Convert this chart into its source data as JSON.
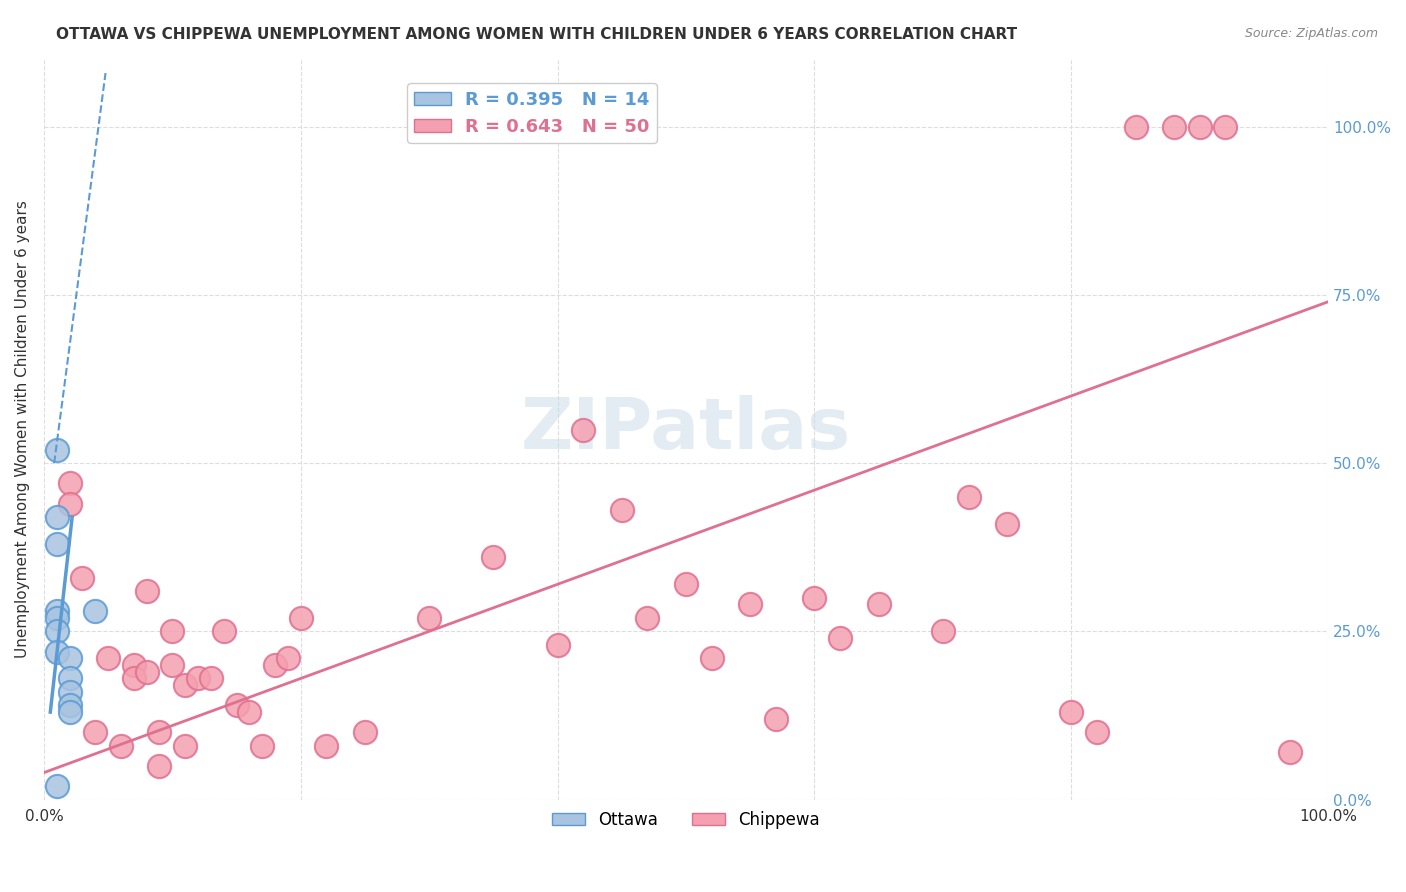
{
  "title": "OTTAWA VS CHIPPEWA UNEMPLOYMENT AMONG WOMEN WITH CHILDREN UNDER 6 YEARS CORRELATION CHART",
  "source": "Source: ZipAtlas.com",
  "ylabel": "Unemployment Among Women with Children Under 6 years",
  "legend_ottawa_R": "0.395",
  "legend_ottawa_N": "14",
  "legend_chippewa_R": "0.643",
  "legend_chippewa_N": "50",
  "color_ottawa": "#a8c4e0",
  "color_chippewa": "#f4a0b0",
  "color_ottawa_line": "#5b9bd5",
  "color_chippewa_line": "#e07090",
  "ottawa_scatter_x": [
    0.01,
    0.01,
    0.01,
    0.01,
    0.01,
    0.01,
    0.01,
    0.02,
    0.02,
    0.02,
    0.02,
    0.02,
    0.04,
    0.01
  ],
  "ottawa_scatter_y": [
    0.52,
    0.42,
    0.38,
    0.28,
    0.27,
    0.25,
    0.22,
    0.21,
    0.18,
    0.16,
    0.14,
    0.13,
    0.28,
    0.02
  ],
  "chippewa_scatter_x": [
    0.02,
    0.02,
    0.03,
    0.04,
    0.05,
    0.06,
    0.07,
    0.07,
    0.08,
    0.08,
    0.09,
    0.09,
    0.1,
    0.1,
    0.11,
    0.11,
    0.12,
    0.13,
    0.14,
    0.15,
    0.16,
    0.17,
    0.18,
    0.19,
    0.2,
    0.22,
    0.25,
    0.3,
    0.35,
    0.4,
    0.42,
    0.45,
    0.47,
    0.5,
    0.52,
    0.55,
    0.57,
    0.6,
    0.62,
    0.65,
    0.7,
    0.72,
    0.75,
    0.8,
    0.82,
    0.85,
    0.88,
    0.9,
    0.92,
    0.97
  ],
  "chippewa_scatter_y": [
    0.47,
    0.44,
    0.33,
    0.1,
    0.21,
    0.08,
    0.2,
    0.18,
    0.31,
    0.19,
    0.1,
    0.05,
    0.2,
    0.25,
    0.17,
    0.08,
    0.18,
    0.18,
    0.25,
    0.14,
    0.13,
    0.08,
    0.2,
    0.21,
    0.27,
    0.08,
    0.1,
    0.27,
    0.36,
    0.23,
    0.55,
    0.43,
    0.27,
    0.32,
    0.21,
    0.29,
    0.12,
    0.3,
    0.24,
    0.29,
    0.25,
    0.45,
    0.41,
    0.13,
    0.1,
    1.0,
    1.0,
    1.0,
    1.0,
    0.07
  ],
  "chippewa_line_x": [
    0.0,
    1.0
  ],
  "chippewa_line_y": [
    0.04,
    0.74
  ],
  "xlim": [
    0.0,
    1.0
  ],
  "ylim": [
    0.0,
    1.1
  ],
  "background_color": "#ffffff",
  "grid_color": "#dddddd"
}
